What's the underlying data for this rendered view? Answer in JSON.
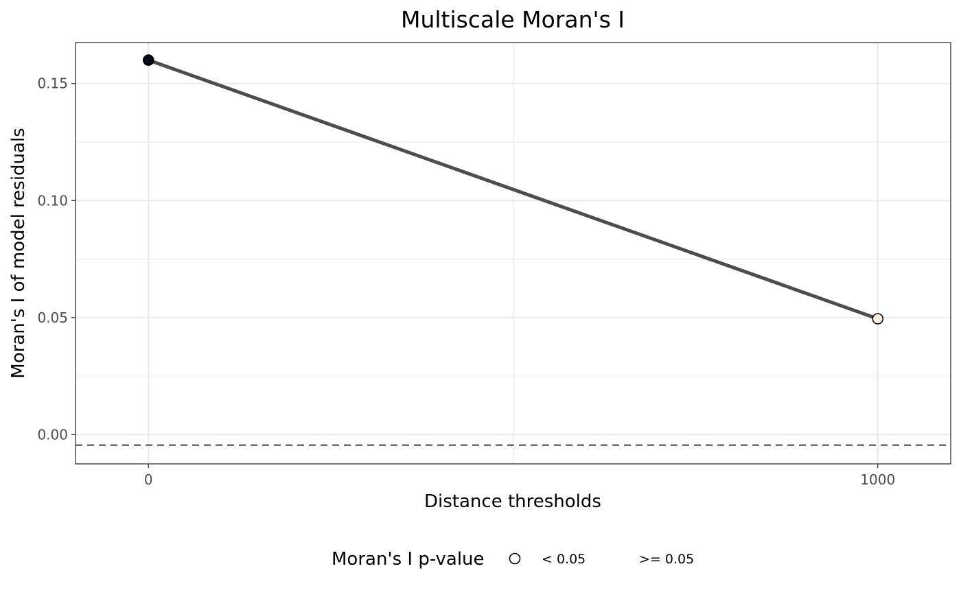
{
  "chart_data": {
    "type": "line",
    "title": "Multiscale Moran's I",
    "xlabel": "Distance thresholds",
    "ylabel": "Moran's I of model residuals",
    "x": [
      0,
      1000
    ],
    "y": [
      0.16,
      0.0495
    ],
    "point_fill_by_pvalue_category": [
      "< 0.05",
      ">= 0.05"
    ],
    "reference_line": {
      "y": -0.0045,
      "style": "dashed"
    },
    "xlim": [
      -100,
      1100
    ],
    "ylim": [
      -0.0125,
      0.1675
    ],
    "x_ticks": [
      0,
      1000
    ],
    "x_tick_labels": [
      "0",
      "1000"
    ],
    "y_ticks": [
      0.0,
      0.05,
      0.1,
      0.15
    ],
    "y_tick_labels": [
      "0.00",
      "0.05",
      "0.10",
      "0.15"
    ],
    "grid": true,
    "legend": {
      "title": "Moran's I p-value",
      "placement": "bottom",
      "entries": [
        {
          "label": "< 0.05",
          "color": "#ffffff"
        },
        {
          "label": ">= 0.05",
          "color": "#ffffff"
        }
      ]
    },
    "colors": {
      "line": "#4d4d4d",
      "point_significant": "#000814",
      "point_nonsignificant": "#fbf0e6",
      "point_stroke": "#000000",
      "grid": "#ebebeb",
      "panel_border": "#333333",
      "reference_line": "#4d4d4d"
    }
  }
}
